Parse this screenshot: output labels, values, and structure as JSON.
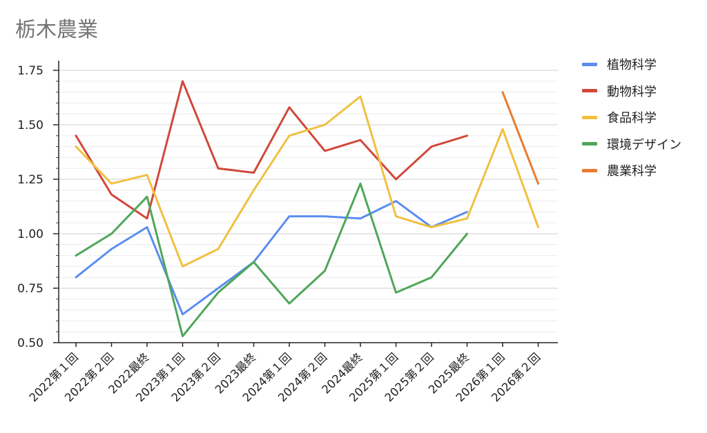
{
  "chart_data": {
    "type": "line",
    "title": "栃木農業",
    "xlabel": "",
    "ylabel": "",
    "ylim": [
      0.5,
      1.75
    ],
    "y_ticks": [
      "0.50",
      "0.75",
      "1.00",
      "1.25",
      "1.50",
      "1.75"
    ],
    "grid": true,
    "legend_position": "right",
    "categories": [
      "2022第１回",
      "2022第２回",
      "2022最終",
      "2023第１回",
      "2023第２回",
      "2023最終",
      "2024第１回",
      "2024第２回",
      "2024最終",
      "2025第１回",
      "2025第２回",
      "2025最終",
      "2026第１回",
      "2026第２回"
    ],
    "series": [
      {
        "name": "植物科学",
        "color": "#5b8def",
        "values": [
          0.8,
          0.93,
          1.03,
          0.63,
          0.75,
          0.87,
          1.08,
          1.08,
          1.07,
          1.15,
          1.03,
          1.1,
          null,
          null
        ]
      },
      {
        "name": "動物科学",
        "color": "#d1473b",
        "values": [
          1.45,
          1.18,
          1.07,
          1.7,
          1.3,
          1.28,
          1.58,
          1.38,
          1.43,
          1.25,
          1.4,
          1.45,
          null,
          null
        ]
      },
      {
        "name": "食品科学",
        "color": "#f1c040",
        "values": [
          1.4,
          1.23,
          1.27,
          0.85,
          0.93,
          1.2,
          1.45,
          1.5,
          1.63,
          1.08,
          1.03,
          1.07,
          1.48,
          1.03
        ]
      },
      {
        "name": "環境デザイン",
        "color": "#4ea65a",
        "values": [
          0.9,
          1.0,
          1.17,
          0.53,
          0.73,
          0.87,
          0.68,
          0.83,
          1.23,
          0.73,
          0.8,
          1.0,
          null,
          null
        ]
      },
      {
        "name": "農業科学",
        "color": "#ea7a30",
        "values": [
          null,
          null,
          null,
          null,
          null,
          null,
          null,
          null,
          null,
          null,
          null,
          null,
          1.65,
          1.23
        ]
      }
    ]
  }
}
